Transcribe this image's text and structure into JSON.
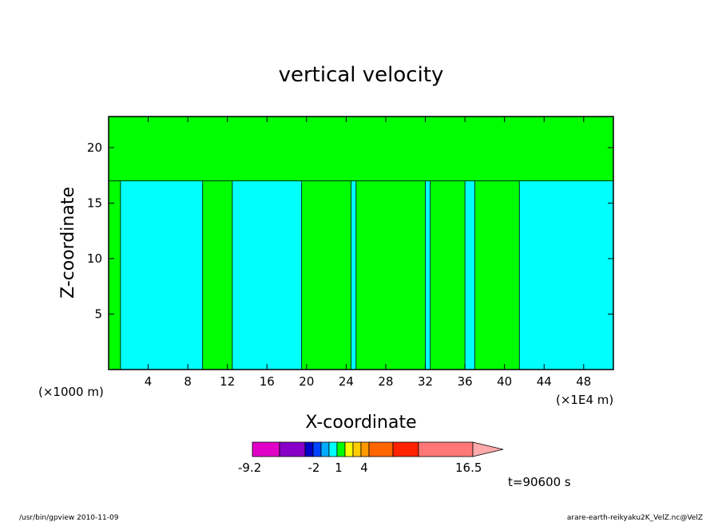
{
  "chart_data": {
    "type": "heatmap",
    "title": "vertical velocity",
    "xlabel": "X-coordinate",
    "ylabel": "Z-coordinate",
    "x_unit_left": "(×1000 m)",
    "x_unit_right": "(×1E4 m)",
    "xlim": [
      0,
      51
    ],
    "ylim": [
      0,
      22.8
    ],
    "x_ticks": [
      4,
      8,
      12,
      16,
      20,
      24,
      28,
      32,
      36,
      40,
      44,
      48
    ],
    "y_ticks": [
      5,
      10,
      15,
      20
    ],
    "time_label": "t=90600 s",
    "regions": [
      {
        "name": "green",
        "color": "#00ff00",
        "x_ranges": [
          [
            0,
            1.2
          ],
          [
            9.5,
            12.5
          ],
          [
            19.5,
            24.5
          ],
          [
            25,
            32
          ],
          [
            32.5,
            36
          ],
          [
            37,
            41.5
          ]
        ]
      },
      {
        "name": "cyan",
        "color": "#00ffff"
      }
    ],
    "colorbar": {
      "min_label": "-9.2",
      "max_label": "16.5",
      "tick_labels": [
        "-2",
        "1",
        "4"
      ],
      "colors": [
        "#e000c8",
        "#8800c8",
        "#0000c8",
        "#0044ff",
        "#00aaff",
        "#00ffff",
        "#00ff00",
        "#ffff00",
        "#ffcc00",
        "#ff9900",
        "#ff6600",
        "#ff2200",
        "#ff7777",
        "#ffaaaa"
      ]
    }
  },
  "footer": {
    "left": "/usr/bin/gpview  2010-11-09",
    "right": "arare-earth-reikyaku2K_VelZ.nc@VelZ"
  }
}
